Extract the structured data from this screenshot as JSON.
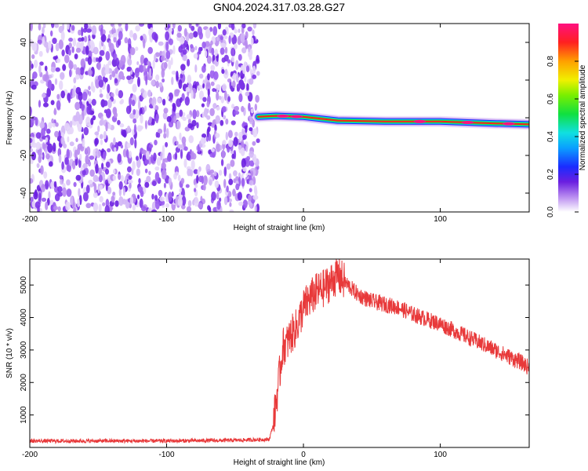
{
  "title": "GN04.2024.317.03.28.G27",
  "chart_data": [
    {
      "type": "heatmap",
      "xlabel": "Height of straight line (km)",
      "ylabel": "Frequency (Hz)",
      "xlim": [
        -200,
        165
      ],
      "ylim": [
        -50,
        50
      ],
      "x_ticks": [
        -200,
        -100,
        0,
        100
      ],
      "y_ticks": [
        -40,
        -20,
        0,
        20,
        40
      ],
      "noise_region_x": [
        -200,
        -33
      ],
      "signal_track": [
        {
          "x": -33,
          "y": 0.5
        },
        {
          "x": -20,
          "y": 1.0
        },
        {
          "x": 0,
          "y": 0.5
        },
        {
          "x": 25,
          "y": -1.5
        },
        {
          "x": 60,
          "y": -2.0
        },
        {
          "x": 100,
          "y": -2.0
        },
        {
          "x": 140,
          "y": -3.0
        },
        {
          "x": 165,
          "y": -3.5
        }
      ],
      "colorbar": {
        "label": "Normalized spectral amplitude",
        "range": [
          0,
          1
        ],
        "ticks": [
          "0.0",
          "0.2",
          "0.4",
          "0.6",
          "0.8"
        ]
      }
    },
    {
      "type": "line",
      "xlabel": "Height of straight line (km)",
      "ylabel": "SNR (10 * v/v)",
      "xlim": [
        -200,
        165
      ],
      "ylim": [
        0,
        5800
      ],
      "x_ticks": [
        -200,
        -100,
        0,
        100
      ],
      "y_ticks": [
        1000,
        2000,
        3000,
        4000,
        5000
      ],
      "color": "#e8393a",
      "series": [
        {
          "x": [
            -200,
            -150,
            -100,
            -50,
            -25,
            -22,
            -20,
            -17,
            -15,
            -12,
            -10,
            -5,
            0,
            5,
            10,
            15,
            20,
            25,
            30,
            40,
            50,
            60,
            70,
            80,
            90,
            100,
            110,
            120,
            130,
            140,
            150,
            160,
            165
          ],
          "values": [
            200,
            200,
            200,
            220,
            250,
            700,
            1400,
            2400,
            3100,
            3200,
            3400,
            3700,
            4300,
            4600,
            4800,
            4900,
            5100,
            5300,
            5100,
            4700,
            4500,
            4400,
            4300,
            4100,
            3950,
            3800,
            3600,
            3400,
            3200,
            3000,
            2800,
            2600,
            2450
          ]
        }
      ]
    }
  ]
}
